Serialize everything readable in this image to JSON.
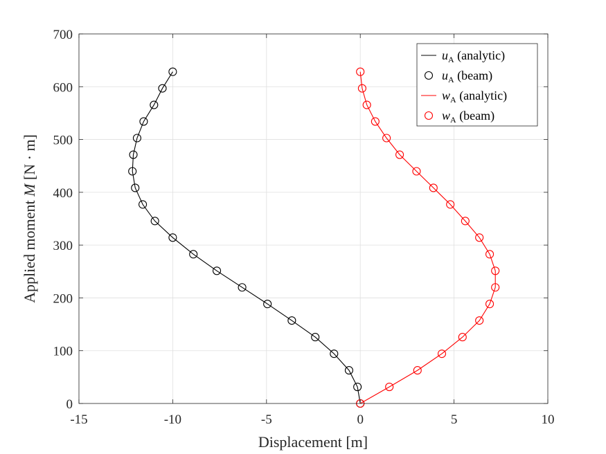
{
  "chart_data": {
    "type": "line",
    "xlabel": "Displacement [m]",
    "ylabel": "Applied moment M [N · m]",
    "xlim": [
      -15,
      10
    ],
    "ylim": [
      0,
      700
    ],
    "xticks": [
      "-15",
      "-10",
      "-5",
      "0",
      "5",
      "10"
    ],
    "yticks": [
      "0",
      "100",
      "200",
      "300",
      "400",
      "500",
      "600",
      "700"
    ],
    "grid": true,
    "legend_position": "top-right",
    "beam_M": [
      0,
      31.4,
      62.8,
      94.2,
      125.7,
      157.1,
      188.5,
      219.9,
      251.3,
      282.7,
      314.2,
      345.6,
      377.0,
      408.4,
      439.8,
      471.2,
      502.7,
      534.1,
      565.5,
      596.9,
      628.3
    ],
    "series": [
      {
        "name": "u_A (analytic)",
        "kind": "line",
        "color": "#000000",
        "values": [
          0,
          -0.15,
          -0.6,
          -1.4,
          -2.4,
          -3.65,
          -4.95,
          -6.3,
          -7.65,
          -8.9,
          -10.0,
          -10.95,
          -11.6,
          -12.0,
          -12.15,
          -12.1,
          -11.9,
          -11.55,
          -11.0,
          -10.55,
          -10.0
        ]
      },
      {
        "name": "u_A (beam)",
        "kind": "markers",
        "color": "#000000",
        "values": [
          0,
          -0.15,
          -0.6,
          -1.4,
          -2.4,
          -3.65,
          -4.95,
          -6.3,
          -7.65,
          -8.9,
          -10.0,
          -10.95,
          -11.6,
          -12.0,
          -12.15,
          -12.1,
          -11.9,
          -11.55,
          -11.0,
          -10.55,
          -10.0
        ]
      },
      {
        "name": "w_A (analytic)",
        "kind": "line",
        "color": "#ff0000",
        "values": [
          0,
          1.55,
          3.05,
          4.35,
          5.45,
          6.35,
          6.9,
          7.2,
          7.2,
          6.9,
          6.35,
          5.6,
          4.8,
          3.9,
          3.0,
          2.1,
          1.4,
          0.8,
          0.35,
          0.1,
          0.0
        ]
      },
      {
        "name": "w_A (beam)",
        "kind": "markers",
        "color": "#ff0000",
        "values": [
          0,
          1.55,
          3.05,
          4.35,
          5.45,
          6.35,
          6.9,
          7.2,
          7.2,
          6.9,
          6.35,
          5.6,
          4.8,
          3.9,
          3.0,
          2.1,
          1.4,
          0.8,
          0.35,
          0.1,
          0.0
        ]
      }
    ],
    "legend": [
      {
        "var": "u",
        "sub": "A",
        "suffix": " (analytic)",
        "kind": "line",
        "color": "#000000"
      },
      {
        "var": "u",
        "sub": "A",
        "suffix": " (beam)",
        "kind": "markers",
        "color": "#000000"
      },
      {
        "var": "w",
        "sub": "A",
        "suffix": " (analytic)",
        "kind": "line",
        "color": "#ff0000"
      },
      {
        "var": "w",
        "sub": "A",
        "suffix": " (beam)",
        "kind": "markers",
        "color": "#ff0000"
      }
    ]
  }
}
